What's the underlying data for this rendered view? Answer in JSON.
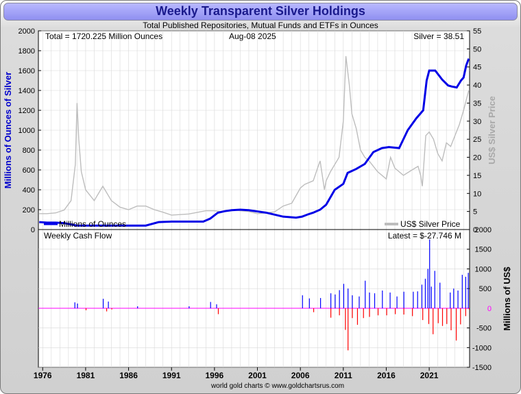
{
  "title": "Weekly Transparent Silver Holdings",
  "subtitle": "Total Published Repositories, Mutual Funds and ETFs in Ounces",
  "footer": "world gold charts © www.goldchartsrus.com",
  "colors": {
    "holdings": "#0000e6",
    "silver": "#bdbdbd",
    "inflow": "#0000ff",
    "outflow": "#ff0000",
    "grid": "#d8d8d8",
    "zero": "#ff00ff"
  },
  "chart_data": [
    {
      "type": "line",
      "title": "Total Published Repositories, Mutual Funds and ETFs in Ounces",
      "total_label": "Total = 1720.225 Million Ounces",
      "date_label": "Aug-08  2025",
      "price_label": "Silver = 38.51",
      "ylabel": "Millions of Ounces of Silver",
      "y2label": "US$ Silver Price",
      "ylim": [
        0,
        2000
      ],
      "y2lim": [
        0,
        55
      ],
      "yticks": [
        0,
        200,
        400,
        600,
        800,
        1000,
        1200,
        1400,
        1600,
        1800,
        2000
      ],
      "y2ticks": [
        0,
        5,
        10,
        15,
        20,
        25,
        30,
        35,
        40,
        45,
        50,
        55
      ],
      "xlim": [
        1975.5,
        2025.7
      ],
      "legend": [
        "Millions of Ounces",
        "US$ Silver Price"
      ],
      "series": [
        {
          "name": "Millions of Ounces",
          "axis": "left",
          "x": [
            1975.6,
            1976.5,
            1977.5,
            1978.5,
            1980,
            1982,
            1984,
            1986,
            1988,
            1989.5,
            1991,
            1993,
            1994.7,
            1995.5,
            1996.4,
            1997.2,
            1998,
            1999,
            2000,
            2002,
            2004,
            2005.5,
            2006.2,
            2006.8,
            2007.5,
            2008.3,
            2009,
            2010,
            2011,
            2011.5,
            2012.5,
            2013.5,
            2014.5,
            2015.5,
            2016.3,
            2017.5,
            2018.5,
            2019.5,
            2020.3,
            2020.7,
            2021,
            2021.7,
            2022.5,
            2023.2,
            2023.6,
            2024.2,
            2024.7,
            2025,
            2025.3,
            2025.6
          ],
          "y": [
            75,
            70,
            70,
            65,
            40,
            40,
            40,
            40,
            40,
            75,
            80,
            80,
            80,
            110,
            170,
            185,
            195,
            200,
            195,
            170,
            130,
            120,
            130,
            150,
            170,
            200,
            250,
            400,
            460,
            570,
            610,
            660,
            780,
            820,
            830,
            820,
            1000,
            1120,
            1200,
            1500,
            1600,
            1600,
            1510,
            1450,
            1440,
            1430,
            1500,
            1530,
            1650,
            1720
          ]
        },
        {
          "name": "US$ Silver Price",
          "axis": "right",
          "x": [
            1975.6,
            1976.5,
            1977.5,
            1978.5,
            1979.3,
            1979.8,
            1980,
            1980.2,
            1980.5,
            1981,
            1982,
            1983,
            1984,
            1985,
            1986,
            1987,
            1988,
            1989,
            1990,
            1991,
            1993,
            1995,
            1996,
            1997,
            1998,
            1999,
            2000,
            2001,
            2002,
            2003,
            2004,
            2005,
            2006,
            2006.5,
            2007,
            2007.5,
            2008,
            2008.3,
            2008.8,
            2009,
            2009.5,
            2010,
            2010.5,
            2011,
            2011.3,
            2011.7,
            2012,
            2012.5,
            2013,
            2013.5,
            2014,
            2015,
            2016,
            2016.5,
            2017,
            2018,
            2019,
            2019.7,
            2020,
            2020.2,
            2020.6,
            2021,
            2021.5,
            2022,
            2022.5,
            2023,
            2023.5,
            2024,
            2024.5,
            2025,
            2025.6
          ],
          "y": [
            4.4,
            4.4,
            4.6,
            5.4,
            8,
            18,
            35,
            25,
            16,
            11,
            8,
            12,
            8,
            6.2,
            5.5,
            6.5,
            6.5,
            5.5,
            4.8,
            4,
            4.3,
            5.2,
            5.2,
            4.9,
            5.5,
            5.2,
            5,
            4.4,
            4.6,
            4.9,
            6.5,
            7.3,
            11.5,
            12.5,
            13,
            13.5,
            17,
            19,
            11,
            13.5,
            16,
            18,
            20,
            30,
            48,
            40,
            32,
            28,
            22,
            20,
            19,
            16,
            14,
            20,
            17,
            15,
            16.5,
            17.5,
            15,
            12,
            26,
            27,
            25,
            21,
            19,
            24,
            23,
            26,
            29,
            33,
            38.5
          ]
        }
      ]
    },
    {
      "type": "bar",
      "title": "Weekly Cash Flow",
      "latest_label": "Latest = $-27.746 M",
      "ylabel": "Millions of US$",
      "ylim": [
        -1500,
        2000
      ],
      "yticks": [
        -1500,
        -1000,
        -500,
        0,
        500,
        1000,
        1500,
        2000
      ],
      "xlim": [
        1975.5,
        2025.7
      ],
      "series": [
        {
          "name": "Inflows",
          "x": [
            1979.7,
            1980,
            1983,
            1983.6,
            1987,
            1993,
            1995.5,
            1996.2,
            2006.2,
            2007,
            2008.3,
            2009.5,
            2010,
            2010.5,
            2011,
            2011.5,
            2012,
            2012.8,
            2013.5,
            2014,
            2014.6,
            2015.5,
            2016.4,
            2017.2,
            2018,
            2019.1,
            2019.6,
            2020.1,
            2020.5,
            2020.8,
            2021,
            2021.2,
            2021.6,
            2022.2,
            2023.4,
            2023.8,
            2024.3,
            2024.8,
            2025.2,
            2025.5
          ],
          "values": [
            150,
            120,
            240,
            170,
            50,
            50,
            160,
            100,
            330,
            250,
            260,
            380,
            350,
            460,
            620,
            500,
            330,
            300,
            700,
            400,
            380,
            450,
            400,
            300,
            420,
            420,
            430,
            600,
            750,
            1000,
            1750,
            550,
            950,
            650,
            400,
            500,
            450,
            850,
            800,
            900
          ]
        },
        {
          "name": "Outflows",
          "x": [
            1981,
            1983.4,
            1984,
            1996.4,
            2007.5,
            2009.5,
            2010.5,
            2011.2,
            2011.5,
            2012,
            2012.6,
            2013.3,
            2014,
            2015,
            2016,
            2017,
            2018,
            2019,
            2020.2,
            2020.9,
            2021.4,
            2022,
            2022.5,
            2023,
            2023.5,
            2024.1,
            2024.6,
            2025.2,
            2025.6
          ],
          "values": [
            -50,
            -80,
            -30,
            -150,
            -100,
            -240,
            -180,
            -550,
            -1070,
            -250,
            -420,
            -250,
            -220,
            -180,
            -180,
            -150,
            -160,
            -200,
            -300,
            -400,
            -660,
            -380,
            -450,
            -400,
            -560,
            -820,
            -410,
            -200,
            -27.7
          ]
        }
      ]
    }
  ],
  "x_axis": {
    "ticks": [
      "1976",
      "1981",
      "1986",
      "1991",
      "1996",
      "2001",
      "2006",
      "2011",
      "2016",
      "2021"
    ],
    "tick_years": [
      1976,
      1981,
      1986,
      1991,
      1996,
      2001,
      2006,
      2011,
      2016,
      2021
    ]
  }
}
